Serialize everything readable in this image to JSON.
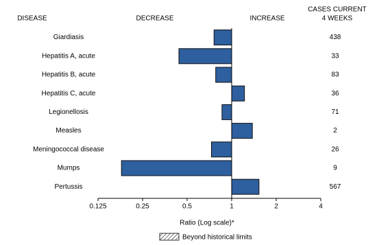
{
  "chart_data": {
    "type": "bar",
    "orientation": "horizontal",
    "log_scale": true,
    "baseline": 1,
    "headers": {
      "disease": "DISEASE",
      "decrease": "DECREASE",
      "increase": "INCREASE",
      "cases": [
        "CASES CURRENT",
        "4 WEEKS"
      ]
    },
    "categories": [
      "Giardiasis",
      "Hepatitis A, acute",
      "Hepatitis B, acute",
      "Hepatitis C, acute",
      "Legionellosis",
      "Measles",
      "Meningococcal disease",
      "Mumps",
      "Pertussis"
    ],
    "values": [
      0.76,
      0.44,
      0.78,
      1.22,
      0.86,
      1.38,
      0.73,
      0.18,
      1.53
    ],
    "cases": [
      438,
      33,
      83,
      36,
      71,
      2,
      26,
      9,
      567
    ],
    "color": "#2e5f9e",
    "xlim": [
      0.125,
      4
    ],
    "xticks": [
      0.125,
      0.25,
      0.5,
      1,
      2,
      4
    ],
    "xlabel": "Ratio (Log scale)*",
    "legend": "Beyond historical limits"
  }
}
